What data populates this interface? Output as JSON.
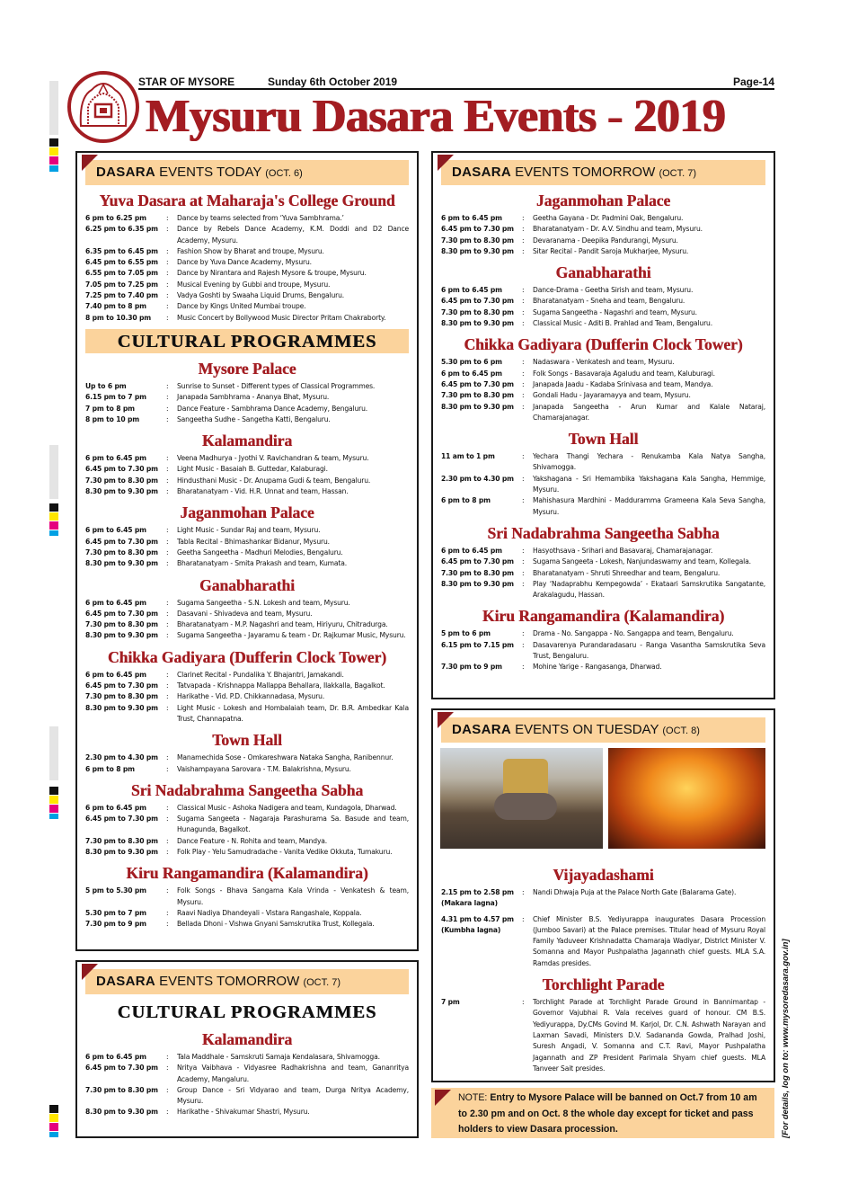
{
  "masthead": {
    "paper": "STAR OF MYSORE",
    "date": "Sunday 6th October 2019",
    "page": "Page-14",
    "title": "Mysuru Dasara Events - 2019"
  },
  "today": {
    "band": {
      "bold": "DASARA",
      "rest": " EVENTS TODAY ",
      "date": "(OCT. 6)"
    },
    "blocks": [
      {
        "type": "venue",
        "title": "Yuva Dasara at Maharaja's College Ground",
        "rows": [
          {
            "time": "6 pm to 6.25 pm",
            "desc": "Dance by teams selected from ‘Yuva Sambhrama.’"
          },
          {
            "time": "6.25 pm to 6.35 pm",
            "desc": "Dance by Rebels Dance Academy, K.M. Doddi and D2 Dance Academy, Mysuru."
          },
          {
            "time": "6.35 pm to 6.45 pm",
            "desc": "Fashion Show by Bharat and troupe, Mysuru."
          },
          {
            "time": "6.45 pm to 6.55 pm",
            "desc": "Dance by Yuva Dance Academy, Mysuru."
          },
          {
            "time": "6.55 pm to 7.05 pm",
            "desc": "Dance by Nirantara and Rajesh Mysore & troupe, Mysuru."
          },
          {
            "time": "7.05 pm to 7.25 pm",
            "desc": "Musical Evening by Gubbi and troupe, Mysuru."
          },
          {
            "time": "7.25 pm to 7.40 pm",
            "desc": "Vadya Goshti by Swaaha Liquid Drums, Bengaluru."
          },
          {
            "time": "7.40 pm to 8 pm",
            "desc": "Dance by Kings United Mumbai troupe."
          },
          {
            "time": "8 pm to 10.30 pm",
            "desc": "Music Concert by Bollywood Music Director Pritam Chakraborty."
          }
        ]
      },
      {
        "type": "banner",
        "title": "CULTURAL PROGRAMMES"
      },
      {
        "type": "venue",
        "title": "Mysore Palace",
        "rows": [
          {
            "time": "Up to 6 pm",
            "desc": "Sunrise to Sunset - Different types of Classical Programmes."
          },
          {
            "time": "6.15 pm to 7 pm",
            "desc": "Janapada Sambhrama - Ananya Bhat, Mysuru."
          },
          {
            "time": "7 pm to 8 pm",
            "desc": "Dance Feature - Sambhrama Dance Academy, Bengaluru."
          },
          {
            "time": "8 pm to 10 pm",
            "desc": "Sangeetha Sudhe - Sangetha Katti, Bengaluru."
          }
        ]
      },
      {
        "type": "venue",
        "title": "Kalamandira",
        "rows": [
          {
            "time": "6 pm to 6.45 pm",
            "desc": "Veena Madhurya - Jyothi V. Ravichandran & team, Mysuru."
          },
          {
            "time": "6.45 pm to 7.30 pm",
            "desc": "Light Music - Basaiah B. Guttedar, Kalaburagi."
          },
          {
            "time": "7.30 pm to 8.30 pm",
            "desc": "Hindusthani Music - Dr. Anupama Gudi & team, Bengaluru."
          },
          {
            "time": "8.30 pm to 9.30 pm",
            "desc": "Bharatanatyam - Vid. H.R. Unnat and team, Hassan."
          }
        ]
      },
      {
        "type": "venue",
        "title": "Jaganmohan Palace",
        "rows": [
          {
            "time": "6 pm to 6.45 pm",
            "desc": "Light Music - Sundar Raj and team, Mysuru."
          },
          {
            "time": "6.45 pm to 7.30 pm",
            "desc": "Tabla Recital - Bhimashankar Bidanur, Mysuru."
          },
          {
            "time": "7.30 pm to 8.30 pm",
            "desc": "Geetha Sangeetha - Madhuri Melodies, Bengaluru."
          },
          {
            "time": "8.30 pm to 9.30 pm",
            "desc": "Bharatanatyam - Smita Prakash and team, Kumata."
          }
        ]
      },
      {
        "type": "venue",
        "title": "Ganabharathi",
        "rows": [
          {
            "time": "6 pm to 6.45 pm",
            "desc": "Sugama Sangeetha - S.N. Lokesh and team, Mysuru."
          },
          {
            "time": "6.45 pm to 7.30 pm",
            "desc": "Dasavani - Shivadeva and team, Mysuru."
          },
          {
            "time": "7.30 pm to 8.30 pm",
            "desc": "Bharatanatyam - M.P. Nagashri and team, Hiriyuru, Chitradurga."
          },
          {
            "time": "8.30 pm to 9.30 pm",
            "desc": "Sugama Sangeetha - Jayaramu & team - Dr. Rajkumar Music, Mysuru."
          }
        ]
      },
      {
        "type": "venue",
        "title": "Chikka Gadiyara (Dufferin Clock Tower)",
        "rows": [
          {
            "time": "6 pm to 6.45 pm",
            "desc": "Clarinet Recital - Pundalika Y. Bhajantri, Jamakandi."
          },
          {
            "time": "6.45 pm to 7.30 pm",
            "desc": "Tatvapada - Krishnappa Mallappa Behallara, Ilakkalla, Bagalkot."
          },
          {
            "time": "7.30 pm to 8.30 pm",
            "desc": "Harikathe - Vid. P.D. Chikkannadasa, Mysuru."
          },
          {
            "time": "8.30 pm to 9.30 pm",
            "desc": "Light Music - Lokesh and Hombalaiah team, Dr. B.R. Ambedkar Kala Trust, Channapatna."
          }
        ]
      },
      {
        "type": "venue",
        "title": "Town Hall",
        "rows": [
          {
            "time": "2.30 pm to 4.30 pm",
            "desc": "Manamechida Sose - Omkareshwara Nataka Sangha, Ranibennur."
          },
          {
            "time": "6 pm to 8 pm",
            "desc": "Vaishampayana Sarovara - T.M. Balakrishna, Mysuru."
          }
        ]
      },
      {
        "type": "venue",
        "title": "Sri Nadabrahma Sangeetha Sabha",
        "rows": [
          {
            "time": "6 pm to 6.45 pm",
            "desc": "Classical Music - Ashoka Nadigera and team, Kundagola, Dharwad."
          },
          {
            "time": "6.45 pm to 7.30 pm",
            "desc": "Sugama Sangeeta - Nagaraja Parashurama Sa. Basude and team, Hunagunda, Bagalkot."
          },
          {
            "time": "7.30 pm to 8.30 pm",
            "desc": "Dance Feature - N. Rohita and team, Mandya."
          },
          {
            "time": "8.30 pm to 9.30 pm",
            "desc": "Folk Play - Yelu Samudradache - Vanita Vedike Okkuta, Tumakuru."
          }
        ]
      },
      {
        "type": "venue",
        "title": "Kiru Rangamandira (Kalamandira)",
        "rows": [
          {
            "time": "5 pm to 5.30 pm",
            "desc": "Folk Songs - Bhava Sangama Kala Vrinda - Venkatesh & team, Mysuru."
          },
          {
            "time": "5.30 pm to 7 pm",
            "desc": "Raavi Nadiya Dhandeyali - Vistara Rangashale, Koppala."
          },
          {
            "time": "7.30 pm to 9 pm",
            "desc": "Bellada Dhoni - Vishwa Gnyani Samskrutika Trust, Kollegala."
          }
        ]
      }
    ]
  },
  "tomorrow_cultural": {
    "band": {
      "bold": "DASARA",
      "rest": " EVENTS TOMORROW ",
      "date": "(OCT. 7)"
    },
    "blocks": [
      {
        "type": "banner",
        "title": "CULTURAL PROGRAMMES",
        "plain": true
      },
      {
        "type": "venue",
        "title": "Kalamandira",
        "rows": [
          {
            "time": "6 pm to 6.45 pm",
            "desc": "Tala Maddhale - Samskruti Samaja Kendalasara, Shivamogga."
          },
          {
            "time": "6.45 pm to 7.30 pm",
            "desc": "Nritya Vaibhava - Vidyasree Radhakrishna and team, Gananritya Academy, Mangaluru."
          },
          {
            "time": "7.30 pm to 8.30 pm",
            "desc": "Group Dance - Sri Vidyarao and team, Durga Nritya Academy, Mysuru."
          },
          {
            "time": "8.30 pm to 9.30 pm",
            "desc": "Harikathe - Shivakumar Shastri, Mysuru."
          }
        ]
      }
    ]
  },
  "tomorrow": {
    "band": {
      "bold": "DASARA",
      "rest": " EVENTS TOMORROW ",
      "date": "(OCT. 7)"
    },
    "blocks": [
      {
        "type": "venue",
        "title": "Jaganmohan Palace",
        "rows": [
          {
            "time": "6 pm to 6.45 pm",
            "desc": "Geetha Gayana - Dr. Padmini Oak, Bengaluru."
          },
          {
            "time": "6.45 pm to 7.30 pm",
            "desc": "Bharatanatyam - Dr. A.V. Sindhu and team, Mysuru."
          },
          {
            "time": "7.30 pm to 8.30 pm",
            "desc": "Devaranama - Deepika Pandurangi, Mysuru."
          },
          {
            "time": "8.30 pm to 9.30 pm",
            "desc": "Sitar Recital - Pandit Saroja Mukharjee, Mysuru."
          }
        ]
      },
      {
        "type": "venue",
        "title": "Ganabharathi",
        "rows": [
          {
            "time": "6 pm to 6.45 pm",
            "desc": "Dance-Drama - Geetha Sirish and team, Mysuru."
          },
          {
            "time": "6.45 pm to 7.30 pm",
            "desc": "Bharatanatyam - Sneha and team, Bengaluru."
          },
          {
            "time": "7.30 pm to 8.30 pm",
            "desc": "Sugama Sangeetha - Nagashri and team, Mysuru."
          },
          {
            "time": "8.30 pm to 9.30 pm",
            "desc": "Classical Music - Aditi B. Prahlad and Team, Bengaluru."
          }
        ]
      },
      {
        "type": "venue",
        "title": "Chikka Gadiyara (Dufferin Clock Tower)",
        "rows": [
          {
            "time": "5.30 pm to 6 pm",
            "desc": "Nadaswara - Venkatesh and team, Mysuru."
          },
          {
            "time": "6 pm to 6.45 pm",
            "desc": "Folk Songs - Basavaraja Agaludu and team, Kaluburagi."
          },
          {
            "time": "6.45 pm to 7.30 pm",
            "desc": "Janapada Jaadu - Kadaba Srinivasa and team, Mandya."
          },
          {
            "time": "7.30 pm to 8.30 pm",
            "desc": "Gondali Hadu - Jayaramayya and team, Mysuru."
          },
          {
            "time": "8.30 pm to 9.30 pm",
            "desc": "Janapada Sangeetha - Arun Kumar and Kalale Nataraj, Chamarajanagar."
          }
        ]
      },
      {
        "type": "venue",
        "title": "Town Hall",
        "rows": [
          {
            "time": "11 am to 1 pm",
            "desc": "Yechara Thangi Yechara - Renukamba Kala Natya Sangha, Shivamogga."
          },
          {
            "time": "2.30 pm to 4.30 pm",
            "desc": "Yakshagana - Sri Hemambika Yakshagana Kala Sangha, Hemmige, Mysuru."
          },
          {
            "time": "6 pm to 8 pm",
            "desc": "Mahishasura Mardhini - Madduramma Grameena Kala Seva Sangha, Mysuru."
          }
        ]
      },
      {
        "type": "venue",
        "title": "Sri Nadabrahma Sangeetha Sabha",
        "rows": [
          {
            "time": "6 pm to 6.45 pm",
            "desc": "Hasyothsava - Srihari and Basavaraj, Chamarajanagar."
          },
          {
            "time": "6.45 pm to 7.30 pm",
            "desc": "Sugama Sangeeta - Lokesh, Nanjundaswamy and team, Kollegala."
          },
          {
            "time": "7.30 pm to 8.30 pm",
            "desc": "Bharatanatyam - Shruti Shreedhar and team, Bengaluru."
          },
          {
            "time": "8.30 pm to 9.30 pm",
            "desc": "Play ‘Nadaprabhu Kempegowda’ - Ekataari Samskrutika Sangatante, Arakalagudu, Hassan."
          }
        ]
      },
      {
        "type": "venue",
        "title": "Kiru Rangamandira (Kalamandira)",
        "rows": [
          {
            "time": "5 pm to 6 pm",
            "desc": "Drama - No. Sangappa - No. Sangappa and team, Bengaluru."
          },
          {
            "time": "6.15 pm to 7.15 pm",
            "desc": "Dasavarenya Purandaradasaru - Ranga Vasantha Samskrutika Seva Trust, Bengaluru."
          },
          {
            "time": "7.30 pm to 9 pm",
            "desc": "Mohine Yarige - Rangasanga, Dharwad."
          }
        ]
      }
    ]
  },
  "tuesday": {
    "band": {
      "bold": "DASARA",
      "rest": " EVENTS ON TUESDAY ",
      "date": "(OCT. 8)"
    },
    "photos": [
      "jumboo-savari-photo",
      "torchlight-parade-photo"
    ],
    "blocks": [
      {
        "type": "venue",
        "title": "Vijayadashami",
        "rows": [
          {
            "time": "2.15 pm to 2.58 pm",
            "sub": "(Makara lagna)",
            "desc": "Nandi Dhwaja Puja at the Palace North Gate (Balarama Gate)."
          },
          {
            "time": "4.31 pm to 4.57 pm",
            "sub": "(Kumbha lagna)",
            "desc": "Chief Minister B.S. Yediyurappa inaugurates Dasara Procession (Jumboo Savari) at the Palace premises. Titular head of Mysuru Royal Family Yaduveer Krishnadatta Chamaraja Wadiyar, District Minister V. Somanna and Mayor Pushpalatha Jagannath chief guests. MLA S.A. Ramdas presides."
          }
        ]
      },
      {
        "type": "venue",
        "title": "Torchlight Parade",
        "rows": [
          {
            "time": "7 pm",
            "desc": "Torchlight Parade at Torchlight Parade Ground in Bannimantap - Governor Vajubhai R. Vala receives guard of honour. CM B.S. Yediyurappa, Dy.CMs Govind M. Karjol, Dr. C.N. Ashwath Narayan and Laxman Savadi, Ministers D.V. Sadananda Gowda, Pralhad Joshi, Suresh Angadi, V. Somanna and C.T. Ravi, Mayor Pushpalatha Jagannath and ZP President Parimala Shyam chief guests. MLA Tanveer Sait presides."
          }
        ]
      }
    ]
  },
  "note": {
    "label": "NOTE:",
    "text": " Entry to Mysore Palace will be banned on Oct.7 from 10 am to 2.30 pm and on Oct. 8 the whole day except for ticket and pass holders to view Dasara procession."
  },
  "side_text": "[For details, log on to: www.mysoredasara.gov.in]",
  "colors": {
    "accent_red": "#a31d22",
    "band_peach": "#fbd39c",
    "triangle": "#8e1a1f"
  }
}
